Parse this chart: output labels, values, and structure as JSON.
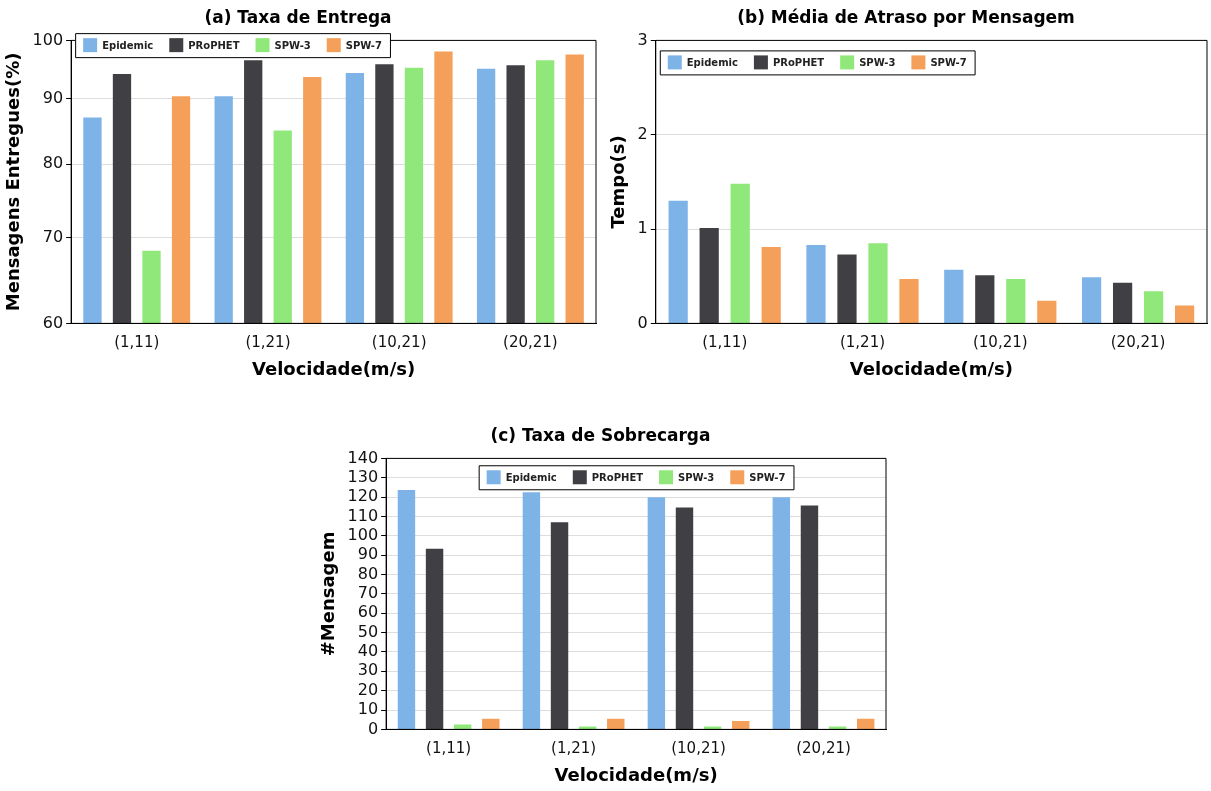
{
  "chart_data": [
    {
      "type": "bar",
      "title": "(a) Taxa de Entrega",
      "xlabel": "Velocidade(m/s)",
      "ylabel": "Mensagens Entregues(%)",
      "categories": [
        "(1,11)",
        "(1,21)",
        "(10,21)",
        "(20,21)"
      ],
      "log": "y",
      "ylim": [
        60,
        100
      ],
      "yticks": [
        60,
        70,
        80,
        90,
        100
      ],
      "grid": "y",
      "legend": "top left",
      "series": [
        {
          "name": "Epidemic",
          "color": "#7eb3e8",
          "values": [
            87.0,
            90.4,
            94.3,
            95.0
          ]
        },
        {
          "name": "PRoPHET",
          "color": "#404044",
          "values": [
            94.1,
            96.5,
            95.8,
            95.6
          ]
        },
        {
          "name": "SPW-3",
          "color": "#90e87a",
          "values": [
            68.4,
            85.0,
            95.2,
            96.5
          ]
        },
        {
          "name": "SPW-7",
          "color": "#f5a05a",
          "values": [
            90.4,
            93.6,
            98.0,
            97.5
          ]
        }
      ]
    },
    {
      "type": "bar",
      "title": "(b) Média de Atraso por Mensagem",
      "xlabel": "Velocidade(m/s)",
      "ylabel": "Tempo(s)",
      "categories": [
        "(1,11)",
        "(1,21)",
        "(10,21)",
        "(20,21)"
      ],
      "ylim": [
        0,
        3
      ],
      "yticks": [
        0,
        1,
        2,
        3
      ],
      "grid": "y",
      "legend": "top left",
      "series": [
        {
          "name": "Epidemic",
          "color": "#7eb3e8",
          "values": [
            1.3,
            0.83,
            0.57,
            0.49
          ]
        },
        {
          "name": "PRoPHET",
          "color": "#404044",
          "values": [
            1.01,
            0.73,
            0.51,
            0.43
          ]
        },
        {
          "name": "SPW-3",
          "color": "#90e87a",
          "values": [
            1.48,
            0.85,
            0.47,
            0.34
          ]
        },
        {
          "name": "SPW-7",
          "color": "#f5a05a",
          "values": [
            0.81,
            0.47,
            0.24,
            0.19
          ]
        }
      ]
    },
    {
      "type": "bar",
      "title": "(c) Taxa de Sobrecarga",
      "xlabel": "Velocidade(m/s)",
      "ylabel": "#Mensagem",
      "categories": [
        "(1,11)",
        "(1,21)",
        "(10,21)",
        "(20,21)"
      ],
      "ylim": [
        0,
        140
      ],
      "yticks": [
        0,
        10,
        20,
        30,
        40,
        50,
        60,
        70,
        80,
        90,
        100,
        110,
        120,
        130,
        140
      ],
      "grid": "y",
      "legend": "top",
      "series": [
        {
          "name": "Epidemic",
          "color": "#7eb3e8",
          "values": [
            123.7,
            122.5,
            119.9,
            119.9
          ]
        },
        {
          "name": "PRoPHET",
          "color": "#404044",
          "values": [
            93.3,
            107,
            114.6,
            115.7
          ]
        },
        {
          "name": "SPW-3",
          "color": "#90e87a",
          "values": [
            2.5,
            1.5,
            1.5,
            1.5
          ]
        },
        {
          "name": "SPW-7",
          "color": "#f5a05a",
          "values": [
            5.5,
            5.5,
            4.4,
            5.5
          ]
        }
      ]
    }
  ]
}
